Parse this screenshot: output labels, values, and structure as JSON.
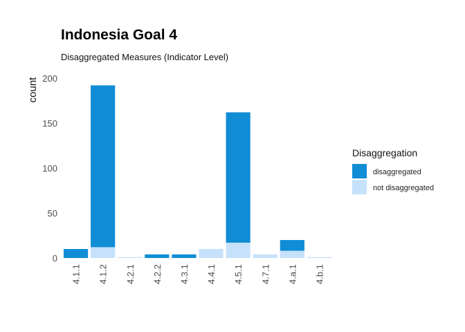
{
  "chart_data": {
    "type": "bar",
    "stacked": true,
    "title": "Indonesia Goal  4",
    "subtitle": "Disaggregated Measures (Indicator Level)",
    "xlabel": "",
    "ylabel": "count",
    "ylim": [
      0,
      200
    ],
    "yticks": [
      0,
      50,
      100,
      150,
      200
    ],
    "grid": false,
    "categories": [
      "4.1.1",
      "4.1.2",
      "4.2.1",
      "4.2.2",
      "4.3.1",
      "4.4.1",
      "4.5.1",
      "4.7.1",
      "4.a.1",
      "4.b.1"
    ],
    "series": [
      {
        "name": "disaggregated",
        "color": "#118dd6",
        "values": [
          10,
          180,
          0,
          4,
          4,
          0,
          145,
          0,
          12,
          0
        ]
      },
      {
        "name": "not disaggregated",
        "color": "#c6e2fb",
        "values": [
          0,
          12,
          1,
          0,
          0,
          10,
          17,
          4,
          8,
          1
        ]
      }
    ],
    "legend": {
      "title": "Disaggregation",
      "position": "right"
    }
  }
}
